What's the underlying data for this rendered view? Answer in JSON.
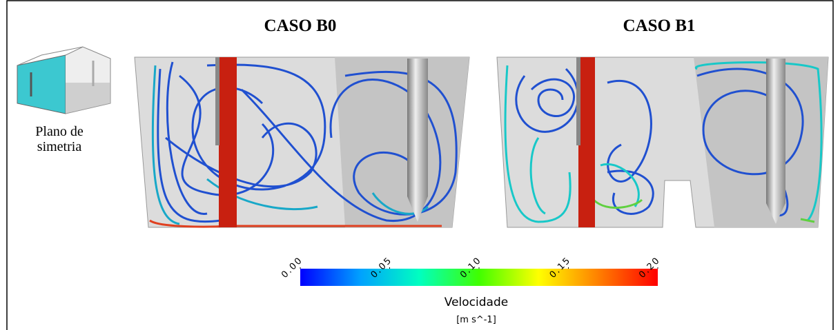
{
  "panels": [
    {
      "title": "CASO B0"
    },
    {
      "title": "CASO B1"
    }
  ],
  "inset": {
    "caption_lines": [
      "Plano de",
      "simetria"
    ]
  },
  "colorbar": {
    "title": "Velocidade",
    "unit": "[m  s^-1]",
    "lim": [
      0,
      0.2
    ],
    "colors": [
      "#0000ff",
      "#00a0ff",
      "#00ffc0",
      "#40ff00",
      "#ffff00",
      "#ff8000",
      "#ff0000"
    ],
    "ticks": [
      {
        "value": 0,
        "label": "0.00"
      },
      {
        "value": 0.05,
        "label": "0.05"
      },
      {
        "value": 0.1,
        "label": "0.10"
      },
      {
        "value": 0.15,
        "label": "0.15"
      },
      {
        "value": 0.2,
        "label": "0.20"
      }
    ]
  }
}
